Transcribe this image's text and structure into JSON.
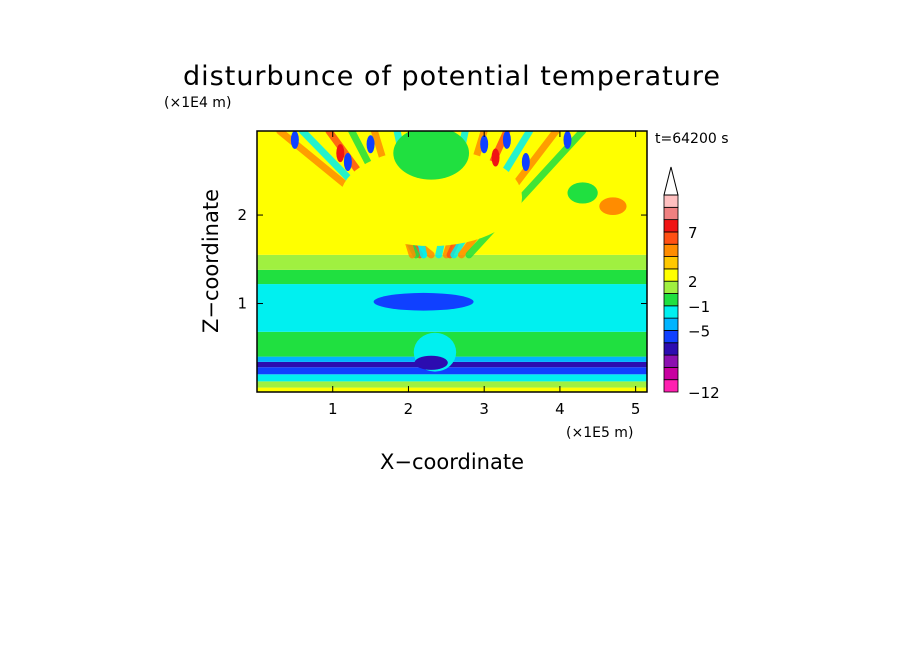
{
  "chart_data": {
    "type": "heatmap",
    "title": "disturbunce of potential temperature",
    "xlabel": "X−coordinate",
    "ylabel": "Z−coordinate",
    "x_unit": "(×1E5 m)",
    "y_unit": "(×1E4 m)",
    "time_label": "t=64200 s",
    "xlim": [
      0,
      5.15
    ],
    "ylim": [
      0,
      2.95
    ],
    "x_ticks": [
      {
        "value": 1,
        "label": "1"
      },
      {
        "value": 2,
        "label": "2"
      },
      {
        "value": 3,
        "label": "3"
      },
      {
        "value": 4,
        "label": "4"
      },
      {
        "value": 5,
        "label": "5"
      }
    ],
    "y_ticks": [
      {
        "value": 1,
        "label": "1"
      },
      {
        "value": 2,
        "label": "2"
      }
    ],
    "colorbar": {
      "arrow_top": true,
      "levels": [
        {
          "color": "#ff20b0"
        },
        {
          "color": "#c800a0"
        },
        {
          "color": "#8c10b0"
        },
        {
          "color": "#2c0cb0"
        },
        {
          "color": "#1040ff"
        },
        {
          "color": "#00b4ff"
        },
        {
          "color": "#00f0f0"
        },
        {
          "color": "#20e040"
        },
        {
          "color": "#a0f040"
        },
        {
          "color": "#ffff00"
        },
        {
          "color": "#ffc800"
        },
        {
          "color": "#ff8c00"
        },
        {
          "color": "#ff5014"
        },
        {
          "color": "#f01414"
        },
        {
          "color": "#f08080"
        },
        {
          "color": "#ffc0c0"
        }
      ],
      "tick_labels": [
        {
          "level_boundary": 0,
          "label": "−12"
        },
        {
          "level_boundary": 5,
          "label": "−5"
        },
        {
          "level_boundary": 7,
          "label": "−1"
        },
        {
          "level_boundary": 9,
          "label": "2"
        },
        {
          "level_boundary": 13,
          "label": "7"
        }
      ]
    },
    "field": {
      "bands": [
        {
          "z0": 0.0,
          "z1": 0.05,
          "color": "#ffff00"
        },
        {
          "z0": 0.05,
          "z1": 0.12,
          "color": "#a0f040"
        },
        {
          "z0": 0.12,
          "z1": 0.2,
          "color": "#00f0f0"
        },
        {
          "z0": 0.2,
          "z1": 0.28,
          "color": "#1040ff"
        },
        {
          "z0": 0.28,
          "z1": 0.34,
          "color": "#2c0cb0"
        },
        {
          "z0": 0.34,
          "z1": 0.4,
          "color": "#00b4ff"
        },
        {
          "z0": 0.4,
          "z1": 0.68,
          "color": "#20e040"
        },
        {
          "z0": 0.68,
          "z1": 1.22,
          "color": "#00f0f0"
        },
        {
          "z0": 1.22,
          "z1": 1.38,
          "color": "#20e040"
        },
        {
          "z0": 1.38,
          "z1": 1.55,
          "color": "#a0f040"
        },
        {
          "z0": 1.55,
          "z1": 2.95,
          "color": "#ffff00"
        }
      ],
      "blobs": [
        {
          "x": 2.2,
          "z": 1.02,
          "rx": 0.66,
          "rz": 0.1,
          "color": "#1040ff"
        },
        {
          "x": 2.35,
          "z": 0.45,
          "rx": 0.28,
          "rz": 0.22,
          "color": "#00f0f0"
        },
        {
          "x": 2.3,
          "z": 0.33,
          "rx": 0.22,
          "rz": 0.08,
          "color": "#2c0cb0"
        },
        {
          "x": 2.3,
          "z": 2.2,
          "rx": 1.2,
          "rz": 0.55,
          "color": "#ffff00"
        },
        {
          "x": 2.3,
          "z": 2.7,
          "rx": 0.5,
          "rz": 0.3,
          "color": "#20e040"
        },
        {
          "x": 4.7,
          "z": 2.1,
          "rx": 0.18,
          "rz": 0.1,
          "color": "#ff8c00"
        },
        {
          "x": 4.3,
          "z": 2.25,
          "rx": 0.2,
          "rz": 0.12,
          "color": "#20e040"
        }
      ],
      "rays": [
        {
          "z_base": 1.55,
          "x_base": 2.3,
          "x_top": 0.3,
          "color": "#ff8c00"
        },
        {
          "z_base": 1.55,
          "x_base": 2.2,
          "x_top": 0.6,
          "color": "#00f0f0"
        },
        {
          "z_base": 1.55,
          "x_base": 2.15,
          "x_top": 0.95,
          "color": "#ff5014"
        },
        {
          "z_base": 1.55,
          "x_base": 2.1,
          "x_top": 1.25,
          "color": "#20e040"
        },
        {
          "z_base": 1.55,
          "x_base": 2.05,
          "x_top": 1.55,
          "color": "#ff8c00"
        },
        {
          "z_base": 1.55,
          "x_base": 2.2,
          "x_top": 1.85,
          "color": "#00f0f0"
        },
        {
          "z_base": 1.55,
          "x_base": 2.4,
          "x_top": 2.75,
          "color": "#00f0f0"
        },
        {
          "z_base": 1.55,
          "x_base": 2.5,
          "x_top": 3.0,
          "color": "#ff8c00"
        },
        {
          "z_base": 1.55,
          "x_base": 2.55,
          "x_top": 3.3,
          "color": "#ff5014"
        },
        {
          "z_base": 1.55,
          "x_base": 2.6,
          "x_top": 3.6,
          "color": "#00f0f0"
        },
        {
          "z_base": 1.55,
          "x_base": 2.7,
          "x_top": 3.95,
          "color": "#ff8c00"
        },
        {
          "z_base": 1.55,
          "x_base": 2.8,
          "x_top": 4.3,
          "color": "#20e040"
        }
      ],
      "spots": [
        {
          "x": 0.5,
          "z": 2.85,
          "color": "#1040ff"
        },
        {
          "x": 1.2,
          "z": 2.6,
          "color": "#1040ff"
        },
        {
          "x": 1.5,
          "z": 2.8,
          "color": "#1040ff"
        },
        {
          "x": 3.0,
          "z": 2.8,
          "color": "#1040ff"
        },
        {
          "x": 3.3,
          "z": 2.85,
          "color": "#1040ff"
        },
        {
          "x": 3.55,
          "z": 2.6,
          "color": "#1040ff"
        },
        {
          "x": 3.15,
          "z": 2.65,
          "color": "#f01414"
        },
        {
          "x": 1.1,
          "z": 2.7,
          "color": "#f01414"
        },
        {
          "x": 4.1,
          "z": 2.85,
          "color": "#1040ff"
        }
      ]
    }
  }
}
